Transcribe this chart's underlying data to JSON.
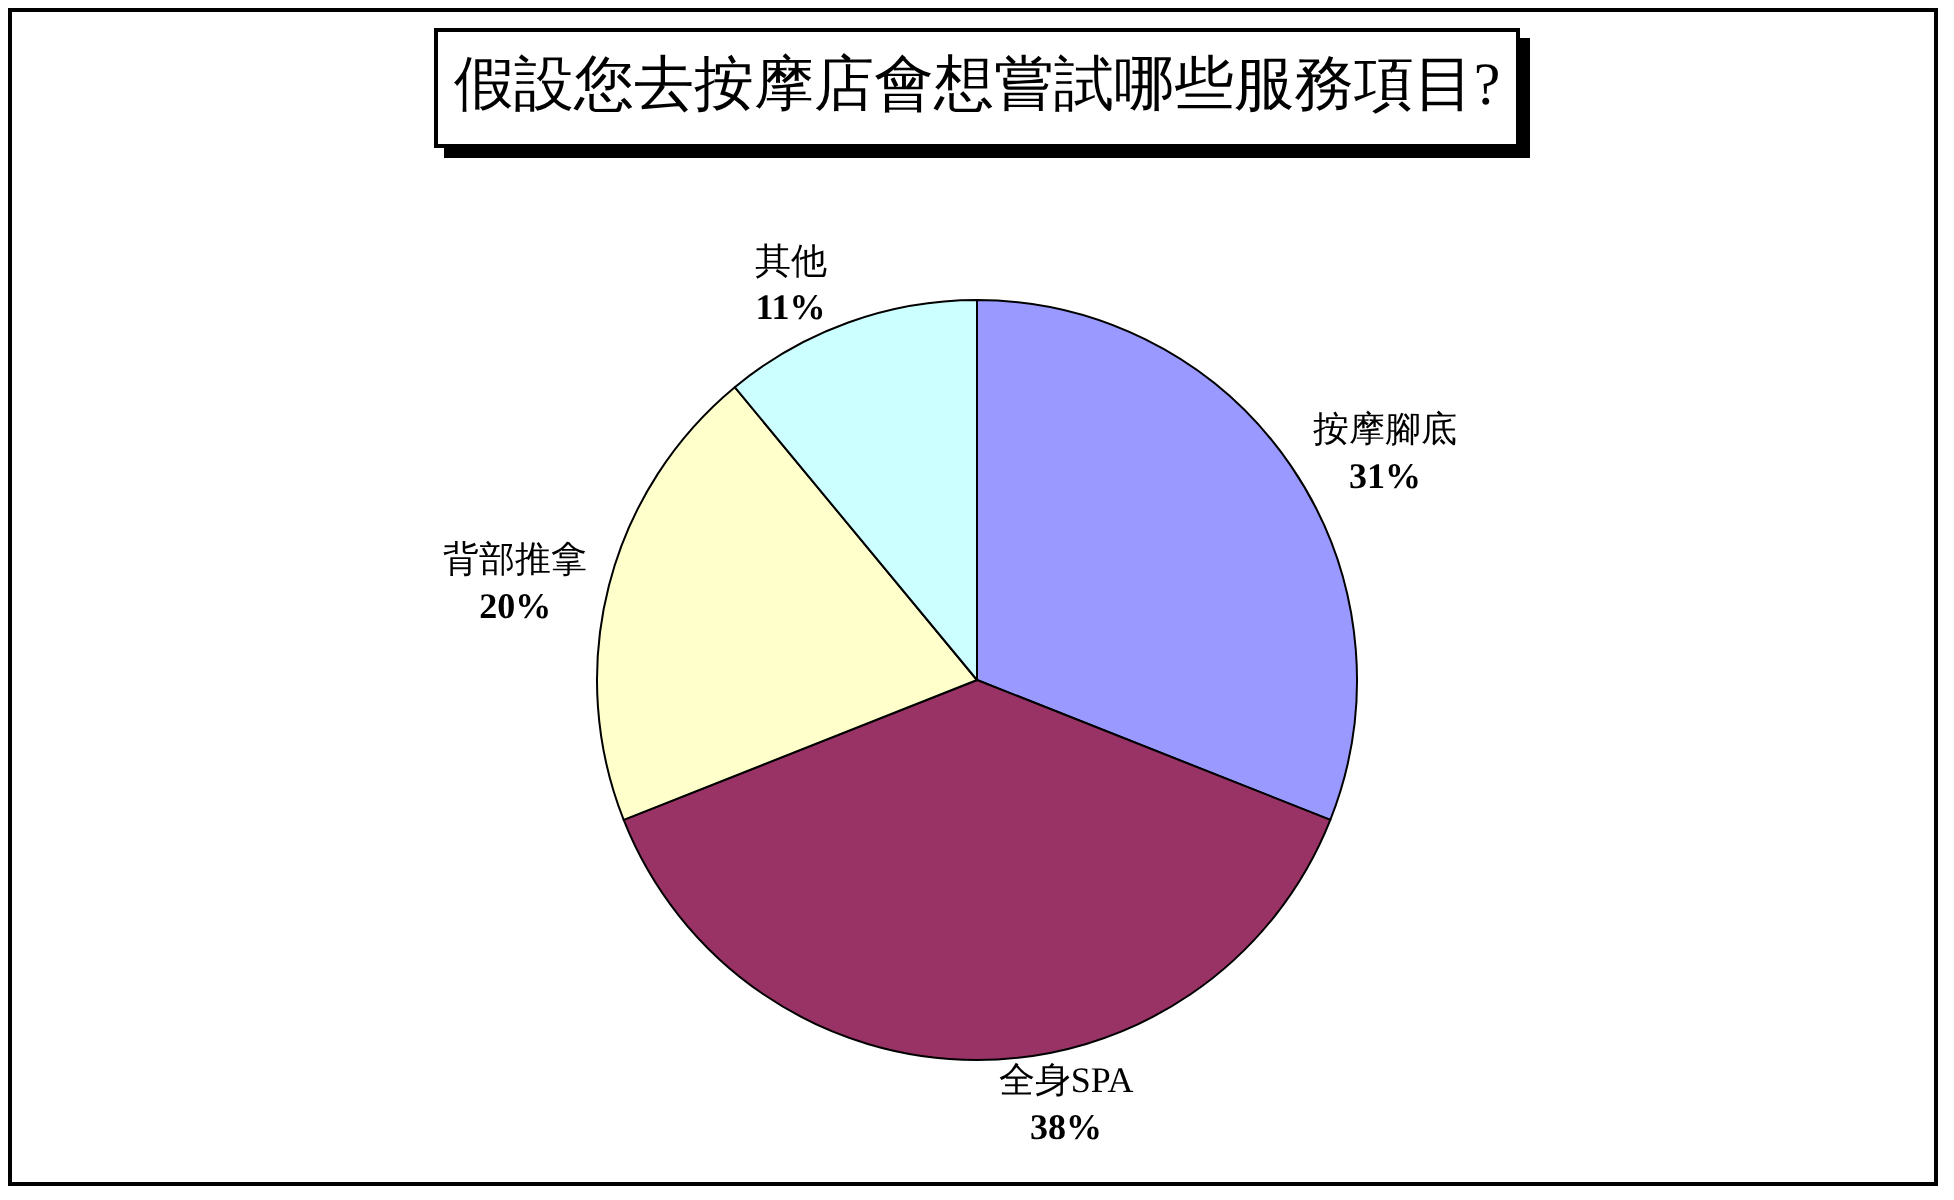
{
  "chart_data": {
    "type": "pie",
    "title": "假設您去按摩店會想嘗試哪些服務項目?",
    "categories": [
      "按摩腳底",
      "全身SPA",
      "背部推拿",
      "其他"
    ],
    "values": [
      31,
      38,
      20,
      11
    ],
    "colors": [
      "#9999ff",
      "#993366",
      "#ffffcc",
      "#ccffff"
    ],
    "value_labels": [
      "31%",
      "38%",
      "20%",
      "11%"
    ]
  }
}
